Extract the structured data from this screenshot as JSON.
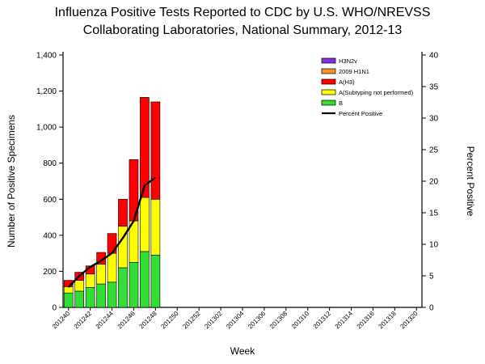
{
  "title": {
    "line1": "Influenza Positive Tests Reported to CDC by U.S. WHO/NREVSS",
    "line2": "Collaborating Laboratories, National Summary, 2012-13"
  },
  "chart_data": {
    "type": "bar",
    "title": "Influenza Positive Tests Reported to CDC by U.S. WHO/NREVSS Collaborating Laboratories, National Summary, 2012-13",
    "xlabel": "Week",
    "ylabel_left": "Number of  Positive  Specimens",
    "ylabel_right": "Percent Positive",
    "ylim_left": [
      0,
      1400
    ],
    "ylim_right": [
      0,
      40
    ],
    "yticks_left": {
      "values": [
        0,
        200,
        400,
        600,
        800,
        1000,
        1200,
        1400
      ],
      "labels": [
        "0",
        "200",
        "400",
        "600",
        "800",
        "1,000",
        "1,200",
        "1,400"
      ]
    },
    "yticks_right": {
      "values": [
        0,
        5,
        10,
        15,
        20,
        25,
        30,
        35,
        40
      ],
      "labels": [
        "0",
        "5",
        "10",
        "15",
        "20",
        "25",
        "30",
        "35",
        "40"
      ]
    },
    "x_all_weeks": [
      "201240",
      "201241",
      "201242",
      "201243",
      "201244",
      "201245",
      "201246",
      "201247",
      "201248",
      "201249",
      "201250",
      "201251",
      "201252",
      "201301",
      "201302",
      "201303",
      "201304",
      "201305",
      "201306",
      "201307",
      "201308",
      "201309",
      "201310",
      "201311",
      "201312",
      "201313",
      "201314",
      "201315",
      "201316",
      "201317",
      "201318",
      "201319",
      "201320"
    ],
    "x_tick_labels": [
      "201240",
      "201242",
      "201244",
      "201246",
      "201248",
      "201250",
      "201252",
      "201302",
      "201304",
      "201306",
      "201308",
      "201310",
      "201312",
      "201314",
      "201316",
      "201318",
      "201320"
    ],
    "categories": [
      "201240",
      "201241",
      "201242",
      "201243",
      "201244",
      "201245",
      "201246",
      "201247",
      "201248"
    ],
    "series": [
      {
        "name": "B",
        "color": "#33DD33",
        "values": [
          80,
          90,
          110,
          130,
          140,
          220,
          250,
          310,
          290
        ]
      },
      {
        "name": "A(Subtyping not performed)",
        "color": "#FFFF00",
        "values": [
          35,
          60,
          75,
          110,
          160,
          230,
          230,
          300,
          310
        ]
      },
      {
        "name": "A(H3)",
        "color": "#FF0000",
        "values": [
          35,
          45,
          45,
          65,
          110,
          150,
          340,
          555,
          540
        ]
      },
      {
        "name": "2009 H1N1",
        "color": "#F79428",
        "values": [
          0,
          0,
          0,
          0,
          0,
          0,
          0,
          0,
          0
        ]
      },
      {
        "name": "H3N2v",
        "color": "#8A2BE2",
        "values": [
          0,
          0,
          0,
          0,
          0,
          0,
          0,
          0,
          0
        ]
      }
    ],
    "line_series": {
      "name": "Percent Positive",
      "color": "#000000",
      "axis": "right",
      "values": [
        3.2,
        5.0,
        6.4,
        7.4,
        8.6,
        11.0,
        13.7,
        19.3,
        20.6
      ]
    },
    "legend": {
      "position": "upper-right-inside",
      "entries": [
        {
          "label": "H3N2v",
          "color": "#8A2BE2",
          "type": "box"
        },
        {
          "label": "2009 H1N1",
          "color": "#F79428",
          "type": "box"
        },
        {
          "label": "A(H3)",
          "color": "#FF0000",
          "type": "box"
        },
        {
          "label": "A(Subtyping not performed)",
          "color": "#FFFF00",
          "type": "box"
        },
        {
          "label": "B",
          "color": "#33DD33",
          "type": "box"
        },
        {
          "label": "Percent Positive",
          "color": "#000000",
          "type": "line"
        }
      ]
    }
  }
}
